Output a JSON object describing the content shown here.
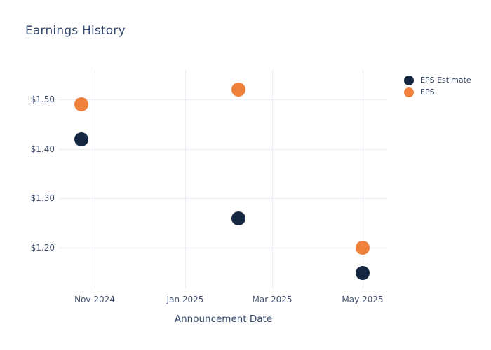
{
  "title": "Earnings History",
  "colors": {
    "background": "#ffffff",
    "title_text": "#34496e",
    "axis_text": "#3e4f6e",
    "legend_text": "#2f3f5c",
    "gridline": "#e9edf5",
    "eps_estimate": "#152740",
    "eps": "#f0813c"
  },
  "legend": {
    "items": [
      {
        "label": "EPS Estimate",
        "color": "#152740"
      },
      {
        "label": "EPS",
        "color": "#f0813c"
      }
    ]
  },
  "chart_data": {
    "type": "scatter",
    "title": "Earnings History",
    "xlabel": "Announcement Date",
    "ylabel": "",
    "grid": true,
    "legend_position": "right-top",
    "xlim": [
      "2024-10-08",
      "2025-05-18"
    ],
    "ylim": [
      1.121,
      1.561
    ],
    "x_ticks": [
      {
        "date": "2024-11-01",
        "label": "Nov 2024"
      },
      {
        "date": "2025-01-01",
        "label": "Jan 2025"
      },
      {
        "date": "2025-03-01",
        "label": "Mar 2025"
      },
      {
        "date": "2025-05-01",
        "label": "May 2025"
      }
    ],
    "y_ticks": [
      {
        "value": 1.5,
        "label": "$1.50"
      },
      {
        "value": 1.4,
        "label": "$1.40"
      },
      {
        "value": 1.3,
        "label": "$1.30"
      },
      {
        "value": 1.2,
        "label": "$1.20"
      }
    ],
    "series": [
      {
        "name": "EPS Estimate",
        "color": "#152740",
        "points": [
          {
            "date": "2024-10-23",
            "value": 1.42
          },
          {
            "date": "2025-02-06",
            "value": 1.26
          },
          {
            "date": "2025-05-01",
            "value": 1.15
          }
        ]
      },
      {
        "name": "EPS",
        "color": "#f0813c",
        "points": [
          {
            "date": "2024-10-23",
            "value": 1.49
          },
          {
            "date": "2025-02-06",
            "value": 1.52
          },
          {
            "date": "2025-05-01",
            "value": 1.2
          }
        ]
      }
    ]
  }
}
